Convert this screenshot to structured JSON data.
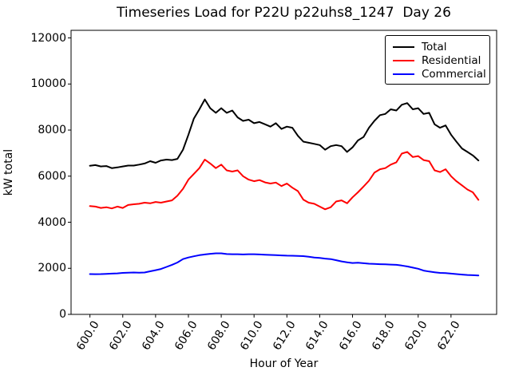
{
  "chart_data": {
    "type": "line",
    "title": "Timeseries Load for P22U p22uhs8_1247  Day 26",
    "xlabel": "Hour of Year",
    "ylabel": "kW total",
    "grid": false,
    "legend_position": "upper right",
    "xlim": [
      598.85,
      624.78
    ],
    "ylim": [
      0,
      12330
    ],
    "xticks": [
      600,
      602,
      604,
      606,
      608,
      610,
      612,
      614,
      616,
      618,
      620,
      622
    ],
    "xtick_labels": [
      "600.0",
      "602.0",
      "604.0",
      "606.0",
      "608.0",
      "610.0",
      "612.0",
      "614.0",
      "616.0",
      "618.0",
      "620.0",
      "622.0"
    ],
    "yticks": [
      0,
      2000,
      4000,
      6000,
      8000,
      10000,
      12000
    ],
    "ytick_labels": [
      "0",
      "2000",
      "4000",
      "6000",
      "8000",
      "10000",
      "12000"
    ],
    "x": [
      600,
      600.33,
      600.67,
      601,
      601.33,
      601.67,
      602,
      602.33,
      602.67,
      603,
      603.33,
      603.67,
      604,
      604.33,
      604.67,
      605,
      605.33,
      605.67,
      606,
      606.33,
      606.67,
      607,
      607.33,
      607.67,
      608,
      608.33,
      608.67,
      609,
      609.33,
      609.67,
      610,
      610.33,
      610.67,
      611,
      611.33,
      611.67,
      612,
      612.33,
      612.67,
      613,
      613.33,
      613.67,
      614,
      614.33,
      614.67,
      615,
      615.33,
      615.67,
      616,
      616.33,
      616.67,
      617,
      617.33,
      617.67,
      618,
      618.33,
      618.67,
      619,
      619.33,
      619.67,
      620,
      620.33,
      620.67,
      621,
      621.33,
      621.67,
      622,
      622.33,
      622.67,
      623,
      623.33,
      623.67
    ],
    "series": [
      {
        "name": "Total",
        "color": "#000000",
        "values": [
          6450,
          6480,
          6420,
          6440,
          6350,
          6380,
          6420,
          6460,
          6460,
          6500,
          6550,
          6650,
          6580,
          6680,
          6720,
          6700,
          6750,
          7150,
          7800,
          8500,
          8900,
          9330,
          8950,
          8750,
          8950,
          8750,
          8850,
          8550,
          8400,
          8450,
          8300,
          8350,
          8250,
          8150,
          8300,
          8050,
          8150,
          8100,
          7750,
          7500,
          7450,
          7400,
          7350,
          7150,
          7300,
          7350,
          7300,
          7050,
          7250,
          7550,
          7700,
          8100,
          8400,
          8650,
          8700,
          8900,
          8850,
          9100,
          9170,
          8900,
          8950,
          8700,
          8750,
          8250,
          8100,
          8200,
          7800,
          7500,
          7200,
          7050,
          6900,
          6680
        ]
      },
      {
        "name": "Residential",
        "color": "#ff0000",
        "values": [
          4700,
          4680,
          4620,
          4650,
          4600,
          4680,
          4620,
          4750,
          4780,
          4800,
          4850,
          4820,
          4880,
          4850,
          4900,
          4950,
          5150,
          5450,
          5850,
          6100,
          6350,
          6720,
          6550,
          6350,
          6500,
          6250,
          6200,
          6250,
          6000,
          5850,
          5780,
          5830,
          5730,
          5680,
          5720,
          5570,
          5680,
          5500,
          5350,
          4980,
          4850,
          4800,
          4680,
          4560,
          4650,
          4900,
          4950,
          4820,
          5080,
          5300,
          5550,
          5800,
          6150,
          6300,
          6350,
          6500,
          6600,
          6980,
          7050,
          6830,
          6870,
          6700,
          6650,
          6250,
          6180,
          6300,
          6000,
          5780,
          5600,
          5420,
          5300,
          4970
        ]
      },
      {
        "name": "Commercial",
        "color": "#0000ff",
        "values": [
          1750,
          1745,
          1750,
          1760,
          1770,
          1780,
          1800,
          1810,
          1820,
          1810,
          1820,
          1870,
          1920,
          1970,
          2060,
          2150,
          2250,
          2400,
          2470,
          2520,
          2570,
          2600,
          2630,
          2650,
          2650,
          2620,
          2610,
          2610,
          2600,
          2610,
          2610,
          2600,
          2590,
          2580,
          2570,
          2560,
          2550,
          2545,
          2540,
          2530,
          2500,
          2470,
          2450,
          2420,
          2400,
          2350,
          2300,
          2260,
          2230,
          2240,
          2220,
          2200,
          2190,
          2180,
          2170,
          2160,
          2150,
          2120,
          2080,
          2030,
          1980,
          1900,
          1860,
          1830,
          1800,
          1790,
          1770,
          1750,
          1730,
          1710,
          1700,
          1690
        ]
      }
    ]
  }
}
